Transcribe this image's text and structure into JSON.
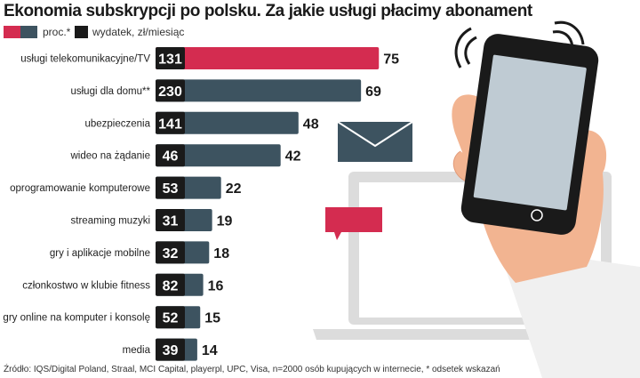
{
  "title": "Ekonomia subskrypcji po polsku.  Za jakie usługi płacimy abonament",
  "legend": [
    {
      "label": "proc.*",
      "colors": [
        "#d42c50",
        "#3d5360"
      ]
    },
    {
      "label": "wydatek, zł/miesiąc",
      "colors": [
        "#1a1a1a"
      ]
    }
  ],
  "source": "Źródło: IQS/Digital Poland, Straal, MCI Capital, playerpl, UPC, Visa, n=2000 osób kupujących w internecie, * odsetek wskazań",
  "colors": {
    "highlight": "#d42c50",
    "bar": "#3d5360",
    "expense_box": "#1a1a1a",
    "text": "#1a1a1a"
  },
  "chart_data": {
    "type": "bar",
    "orientation": "horizontal",
    "categories": [
      "usługi telekomunikacyjne/TV",
      "usługi dla domu**",
      "ubezpieczenia",
      "wideo na żądanie",
      "oprogramowanie komputerowe",
      "streaming muzyki",
      "gry i aplikacje mobilne",
      "członkostwo w klubie fitness",
      "gry online na komputer i konsolę",
      "media"
    ],
    "series": [
      {
        "name": "proc.*",
        "values": [
          75,
          69,
          48,
          42,
          22,
          19,
          18,
          16,
          15,
          14
        ]
      },
      {
        "name": "wydatek, zł/miesiąc",
        "values": [
          131,
          230,
          141,
          46,
          53,
          31,
          32,
          82,
          52,
          39
        ]
      }
    ],
    "highlight_index": 0
  }
}
